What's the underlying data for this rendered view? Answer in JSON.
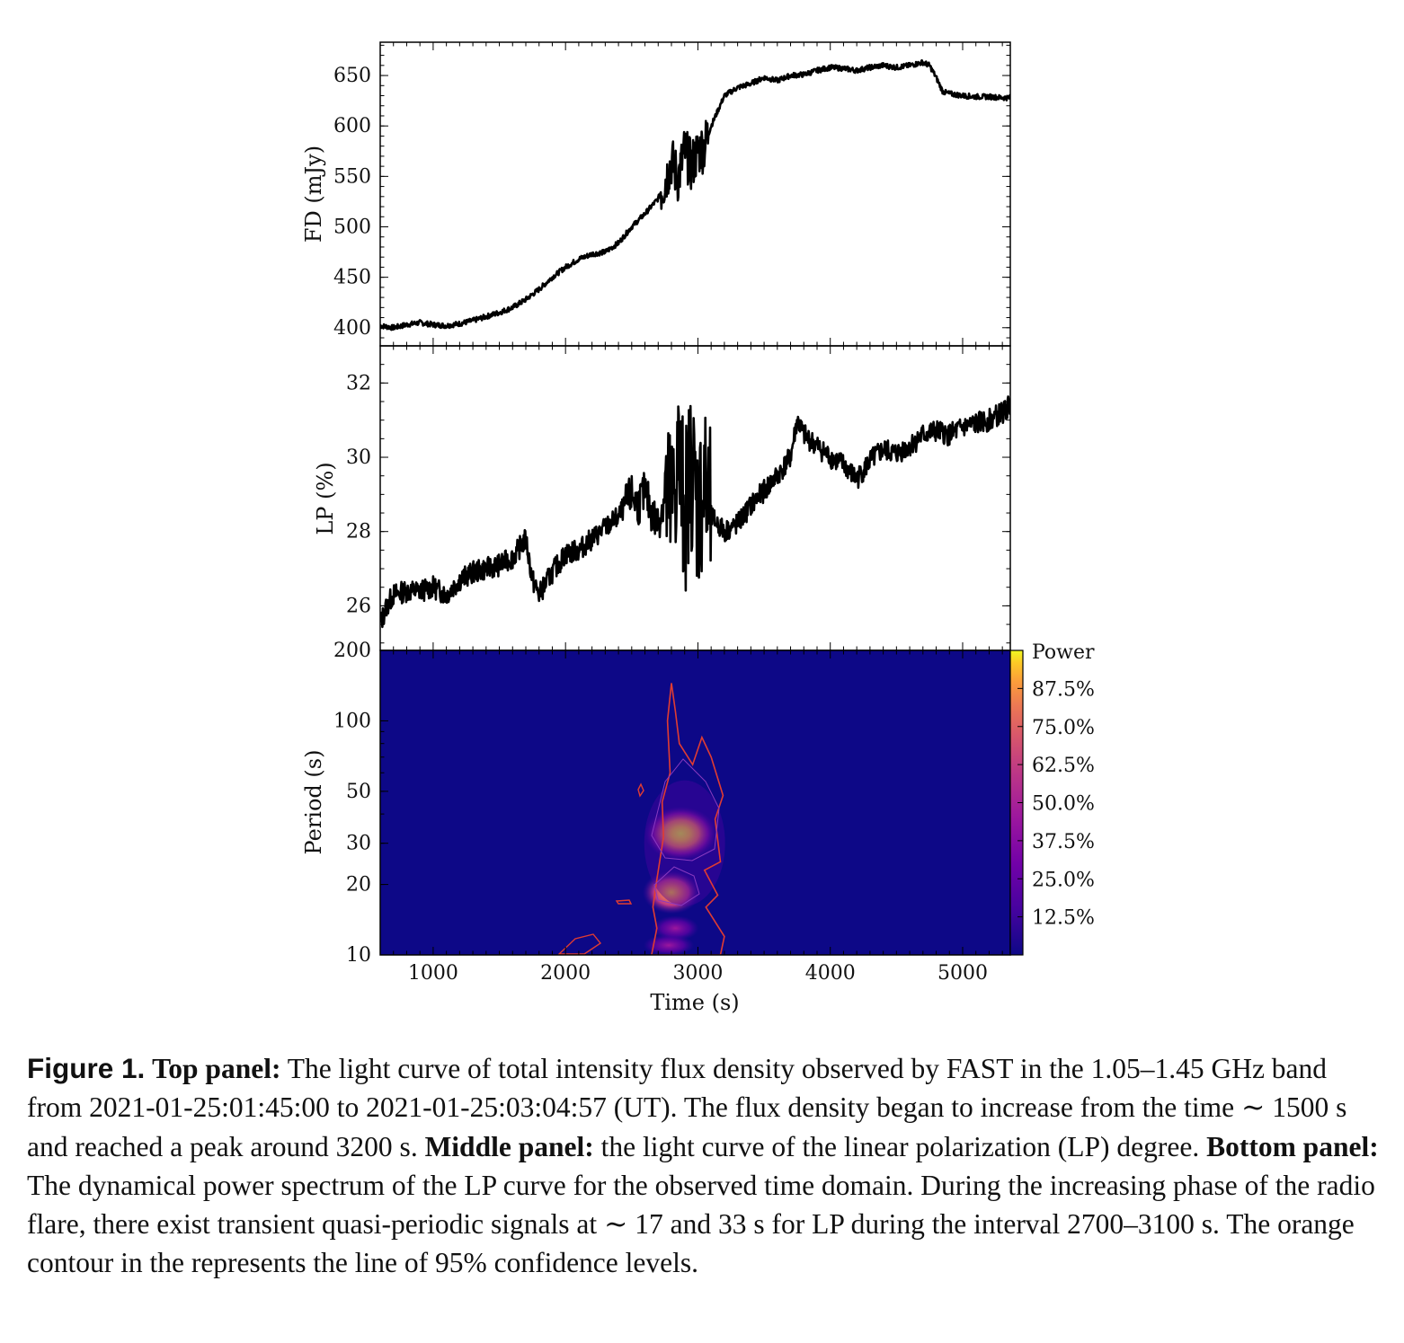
{
  "chart_data": [
    {
      "type": "line",
      "panel": "top",
      "ylabel": "FD (mJy)",
      "xlim": [
        600,
        5360
      ],
      "ylim": [
        382,
        683
      ],
      "yticks": [
        400,
        450,
        500,
        550,
        600,
        650
      ],
      "series": [
        {
          "x": [
            600,
            700,
            800,
            900,
            1000,
            1100,
            1200,
            1300,
            1400,
            1500,
            1600,
            1700,
            1800,
            1900,
            2000,
            2100,
            2200,
            2300,
            2400,
            2500,
            2600,
            2700,
            2750,
            2800,
            2850,
            2900,
            2950,
            3000,
            3050,
            3100,
            3200,
            3300,
            3400,
            3500,
            3600,
            3700,
            3800,
            3900,
            4000,
            4100,
            4200,
            4300,
            4400,
            4500,
            4600,
            4700,
            4750,
            4800,
            4850,
            4900,
            5000,
            5100,
            5200,
            5300,
            5360
          ],
          "y": [
            402,
            400,
            403,
            405,
            403,
            402,
            404,
            407,
            411,
            415,
            420,
            428,
            438,
            450,
            460,
            468,
            473,
            475,
            484,
            500,
            513,
            528,
            545,
            565,
            548,
            575,
            560,
            575,
            580,
            600,
            630,
            638,
            642,
            648,
            645,
            650,
            651,
            655,
            658,
            657,
            655,
            658,
            660,
            658,
            660,
            663,
            660,
            648,
            634,
            632,
            630,
            629,
            629,
            628,
            628
          ]
        }
      ]
    },
    {
      "type": "line",
      "panel": "middle",
      "ylabel": "LP (%)",
      "xlim": [
        600,
        5360
      ],
      "ylim": [
        24.8,
        33.0
      ],
      "yticks": [
        26,
        28,
        30,
        32
      ],
      "series": [
        {
          "x": [
            600,
            650,
            700,
            800,
            900,
            1000,
            1100,
            1200,
            1300,
            1400,
            1500,
            1600,
            1700,
            1750,
            1800,
            1900,
            2000,
            2100,
            2200,
            2300,
            2400,
            2500,
            2550,
            2600,
            2650,
            2700,
            2750,
            2800,
            2850,
            2900,
            2950,
            3000,
            3050,
            3100,
            3200,
            3300,
            3400,
            3500,
            3600,
            3700,
            3750,
            3800,
            3900,
            4000,
            4100,
            4200,
            4300,
            4400,
            4500,
            4600,
            4700,
            4800,
            4900,
            5000,
            5100,
            5200,
            5300,
            5360
          ],
          "y": [
            25.5,
            26.0,
            26.3,
            26.4,
            26.4,
            26.5,
            26.3,
            26.7,
            26.9,
            27.0,
            27.1,
            27.3,
            27.8,
            26.7,
            26.3,
            26.9,
            27.4,
            27.5,
            27.8,
            28.1,
            28.4,
            29.0,
            28.7,
            29.1,
            28.5,
            28.2,
            29.0,
            28.5,
            30.0,
            28.5,
            29.8,
            28.6,
            29.2,
            28.4,
            28.0,
            28.2,
            28.7,
            29.1,
            29.5,
            30.0,
            31.0,
            30.6,
            30.3,
            30.0,
            29.8,
            29.4,
            29.9,
            30.2,
            30.1,
            30.3,
            30.6,
            30.7,
            30.6,
            30.8,
            30.9,
            31.0,
            31.2,
            31.4
          ]
        }
      ]
    },
    {
      "type": "heatmap",
      "panel": "bottom",
      "xlabel": "Time (s)",
      "ylabel": "Period (s)",
      "xlim": [
        600,
        5360
      ],
      "ylim": [
        10,
        200
      ],
      "yscale": "log",
      "xticks": [
        1000,
        2000,
        3000,
        4000,
        5000
      ],
      "yticks": [
        10,
        20,
        30,
        50,
        100,
        200
      ],
      "colormap": "plasma",
      "background_color": "#0d0887",
      "contour_color": "#e03c32",
      "colorbar": {
        "label": "Power",
        "ticks": [
          "12.5%",
          "25.0%",
          "37.5%",
          "50.0%",
          "62.5%",
          "75.0%",
          "87.5%"
        ]
      },
      "hotspots": [
        {
          "time": 2870,
          "period": 33,
          "power": 1.0
        },
        {
          "time": 2800,
          "period": 18.5,
          "power": 0.8
        },
        {
          "time": 2830,
          "period": 13,
          "power": 0.35
        },
        {
          "time": 2780,
          "period": 11,
          "power": 0.3
        }
      ],
      "contour_95": [
        {
          "time": 2800,
          "period": 145
        },
        {
          "time": 2830,
          "period": 110
        },
        {
          "time": 2860,
          "period": 80
        },
        {
          "time": 2960,
          "period": 65
        },
        {
          "time": 3030,
          "period": 85
        },
        {
          "time": 3100,
          "period": 70
        },
        {
          "time": 3190,
          "period": 48
        },
        {
          "time": 3130,
          "period": 38
        },
        {
          "time": 3170,
          "period": 25
        },
        {
          "time": 3050,
          "period": 23
        },
        {
          "time": 3150,
          "period": 18
        },
        {
          "time": 3060,
          "period": 16
        },
        {
          "time": 3200,
          "period": 12
        },
        {
          "time": 3170,
          "period": 10
        },
        {
          "time": 2650,
          "period": 10
        },
        {
          "time": 2690,
          "period": 13
        },
        {
          "time": 2660,
          "period": 16
        },
        {
          "time": 2690,
          "period": 21
        },
        {
          "time": 2740,
          "period": 32
        },
        {
          "time": 2730,
          "period": 45
        },
        {
          "time": 2790,
          "period": 60
        },
        {
          "time": 2770,
          "period": 100
        }
      ]
    }
  ],
  "caption": {
    "fig_label": "Figure 1.",
    "top_title": "Top panel:",
    "top_text": " The light curve of total intensity flux density observed by FAST in the 1.05–1.45 GHz band from 2021-01-25:01:45:00 to 2021-01-25:03:04:57 (UT). The flux density began to increase from the time ∼ 1500 s and reached a peak around 3200 s. ",
    "middle_title": "Middle panel:",
    "middle_text": " the light curve of the linear polarization (LP) degree. ",
    "bottom_title": "Bottom panel:",
    "bottom_text": " The dynamical power spectrum of the LP curve for the observed time domain. During the increasing phase of the radio flare, there exist transient quasi-periodic signals at ∼ 17 and 33 s for LP during the interval 2700–3100 s. The orange contour in the represents the line of 95% confidence levels."
  }
}
